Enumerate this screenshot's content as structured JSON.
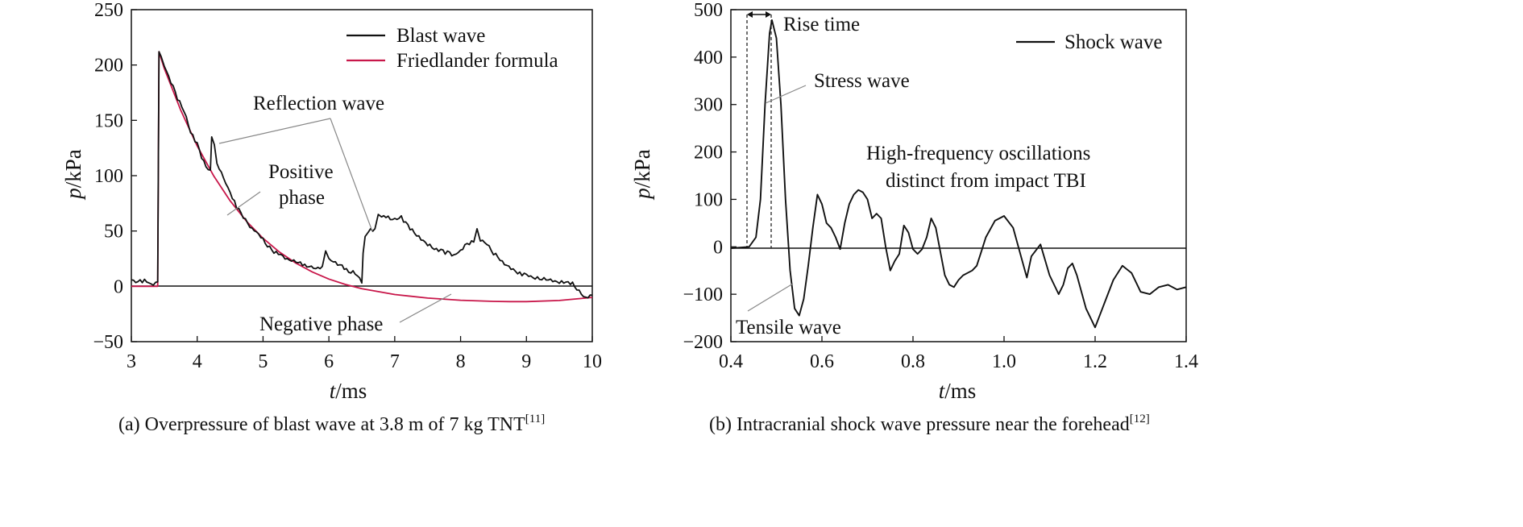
{
  "chart_data": [
    {
      "type": "line",
      "caption_main": "(a) Overpressure of blast wave at 3.8 m of 7 kg TNT",
      "caption_ref": "[11]",
      "xlabel_var": "t",
      "xlabel_unit": "/ms",
      "ylabel_var": "p",
      "ylabel_unit": "/kPa",
      "xlim": [
        3,
        10
      ],
      "ylim": [
        -50,
        250
      ],
      "xticks": [
        "3",
        "4",
        "5",
        "6",
        "7",
        "8",
        "9",
        "10"
      ],
      "yticks": [
        "−50",
        "0",
        "50",
        "100",
        "150",
        "200",
        "250"
      ],
      "legend_position": "top-right",
      "series": [
        {
          "name": "Blast wave",
          "color": "#111111",
          "x": [
            3.0,
            3.1,
            3.2,
            3.3,
            3.4,
            3.42,
            3.45,
            3.5,
            3.6,
            3.7,
            3.8,
            3.9,
            4.0,
            4.1,
            4.2,
            4.22,
            4.26,
            4.3,
            4.4,
            4.5,
            4.6,
            4.7,
            4.8,
            4.9,
            5.0,
            5.1,
            5.2,
            5.3,
            5.4,
            5.5,
            5.6,
            5.7,
            5.8,
            5.9,
            5.95,
            6.0,
            6.1,
            6.2,
            6.3,
            6.4,
            6.5,
            6.52,
            6.55,
            6.6,
            6.7,
            6.75,
            6.8,
            6.9,
            7.0,
            7.1,
            7.2,
            7.3,
            7.4,
            7.5,
            7.6,
            7.7,
            7.8,
            7.9,
            8.0,
            8.1,
            8.2,
            8.25,
            8.3,
            8.4,
            8.5,
            8.6,
            8.7,
            8.8,
            8.9,
            9.0,
            9.1,
            9.2,
            9.3,
            9.4,
            9.5,
            9.6,
            9.7,
            9.8,
            9.9,
            10.0
          ],
          "y": [
            5,
            3,
            6,
            2,
            4,
            212,
            208,
            200,
            185,
            170,
            158,
            140,
            128,
            112,
            105,
            135,
            128,
            110,
            98,
            85,
            72,
            62,
            55,
            48,
            42,
            35,
            30,
            27,
            24,
            22,
            20,
            18,
            16,
            18,
            32,
            25,
            22,
            18,
            14,
            12,
            3,
            30,
            45,
            50,
            52,
            65,
            62,
            63,
            60,
            62,
            55,
            48,
            42,
            38,
            35,
            32,
            30,
            28,
            32,
            38,
            40,
            52,
            42,
            38,
            30,
            25,
            18,
            15,
            12,
            10,
            8,
            7,
            6,
            5,
            4,
            3,
            2,
            -5,
            -10,
            -8
          ]
        },
        {
          "name": "Friedlander formula",
          "color": "#c8174a",
          "x": [
            3.0,
            3.4,
            3.42,
            3.5,
            3.75,
            4.0,
            4.25,
            4.5,
            4.75,
            5.0,
            5.25,
            5.5,
            5.75,
            6.0,
            6.25,
            6.5,
            7.0,
            7.5,
            8.0,
            8.5,
            8.75,
            9.0,
            9.5,
            10.0
          ],
          "y": [
            0,
            0,
            212,
            196.8,
            159.1,
            126.9,
            99.9,
            77.3,
            58.7,
            43.4,
            30.9,
            20.9,
            12.9,
            6.6,
            1.7,
            -2.1,
            -7.4,
            -10.6,
            -12.6,
            -13.6,
            -13.8,
            -13.8,
            -12.8,
            -10.0
          ]
        }
      ],
      "legend": [
        "Blast wave",
        "Friedlander formula"
      ],
      "annotations": [
        "Reflection wave",
        "Positive",
        "phase",
        "Negative phase"
      ]
    },
    {
      "type": "line",
      "caption_main": "(b) Intracranial shock wave pressure near the forehead",
      "caption_ref": "[12]",
      "xlabel_var": "t",
      "xlabel_unit": "/ms",
      "ylabel_var": "p",
      "ylabel_unit": "/kPa",
      "xlim": [
        0.4,
        1.4
      ],
      "ylim": [
        -200,
        500
      ],
      "xticks": [
        "0.4",
        "0.6",
        "0.8",
        "1.0",
        "1.2",
        "1.4"
      ],
      "yticks": [
        "−200",
        "−100",
        "0",
        "100",
        "200",
        "300",
        "400",
        "500"
      ],
      "legend_position": "top-right",
      "series": [
        {
          "name": "Shock wave",
          "color": "#111111",
          "x": [
            0.4,
            0.44,
            0.455,
            0.465,
            0.475,
            0.485,
            0.49,
            0.5,
            0.51,
            0.52,
            0.53,
            0.54,
            0.55,
            0.56,
            0.57,
            0.58,
            0.59,
            0.6,
            0.61,
            0.62,
            0.63,
            0.64,
            0.65,
            0.66,
            0.67,
            0.68,
            0.69,
            0.7,
            0.71,
            0.72,
            0.73,
            0.74,
            0.75,
            0.76,
            0.77,
            0.78,
            0.79,
            0.8,
            0.81,
            0.82,
            0.83,
            0.84,
            0.85,
            0.86,
            0.87,
            0.88,
            0.89,
            0.9,
            0.91,
            0.92,
            0.93,
            0.94,
            0.95,
            0.96,
            0.98,
            1.0,
            1.02,
            1.04,
            1.05,
            1.06,
            1.08,
            1.1,
            1.12,
            1.13,
            1.14,
            1.15,
            1.16,
            1.18,
            1.2,
            1.22,
            1.24,
            1.26,
            1.28,
            1.3,
            1.32,
            1.34,
            1.36,
            1.38,
            1.4
          ],
          "y": [
            -3,
            0,
            20,
            100,
            300,
            450,
            478,
            440,
            300,
            100,
            -50,
            -130,
            -145,
            -110,
            -40,
            40,
            110,
            90,
            50,
            40,
            20,
            -5,
            50,
            90,
            110,
            120,
            115,
            100,
            60,
            70,
            60,
            0,
            -50,
            -30,
            -15,
            45,
            30,
            -5,
            -15,
            -5,
            20,
            60,
            40,
            -10,
            -60,
            -80,
            -85,
            -70,
            -60,
            -55,
            -50,
            -40,
            -10,
            20,
            55,
            65,
            40,
            -30,
            -65,
            -20,
            5,
            -60,
            -100,
            -80,
            -45,
            -35,
            -60,
            -130,
            -170,
            -120,
            -70,
            -40,
            -55,
            -95,
            -100,
            -85,
            -80,
            -90,
            -85
          ],
          "y_note": ""
        }
      ],
      "legend": [
        "Shock wave"
      ],
      "annotations": [
        "Rise time",
        "Stress wave",
        "High-frequency oscillations",
        "distinct from impact TBI",
        "Tensile wave"
      ]
    }
  ],
  "colors": {
    "axis": "#111111",
    "blast": "#111111",
    "friedlander": "#c8174a",
    "leader": "#888888"
  }
}
